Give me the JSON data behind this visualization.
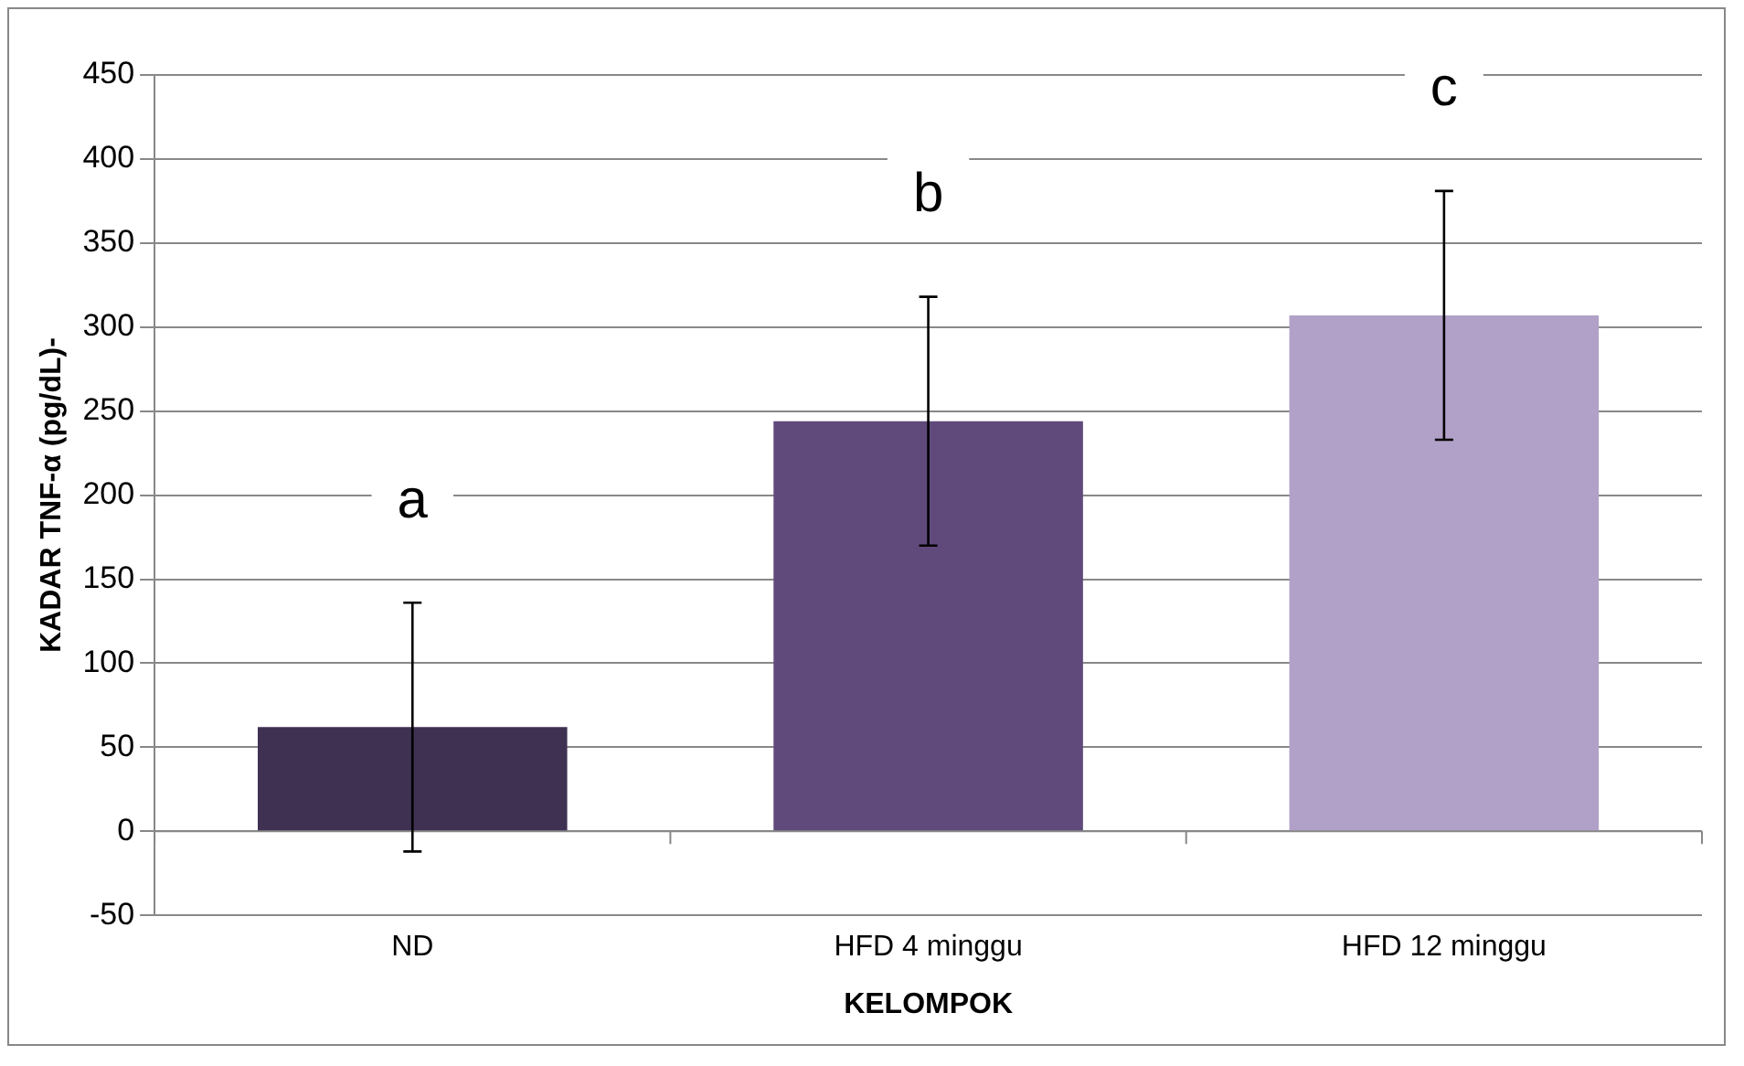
{
  "chart_data": {
    "type": "bar",
    "xlabel": "KELOMPOK",
    "ylabel": "KADAR TNF-α (pg/dL)-",
    "categories": [
      "ND",
      "HFD 4 minggu",
      "HFD 12 minggu"
    ],
    "values": [
      62,
      244,
      307
    ],
    "colors": [
      "#3f3152",
      "#604a7b",
      "#b1a0c7"
    ],
    "errors": [
      74,
      74,
      74
    ],
    "ylim": [
      -50,
      450
    ],
    "yticks": [
      -50,
      0,
      50,
      100,
      150,
      200,
      250,
      300,
      350,
      400,
      450
    ],
    "grid": "y",
    "annotations": [
      "a",
      "b",
      "c"
    ]
  }
}
